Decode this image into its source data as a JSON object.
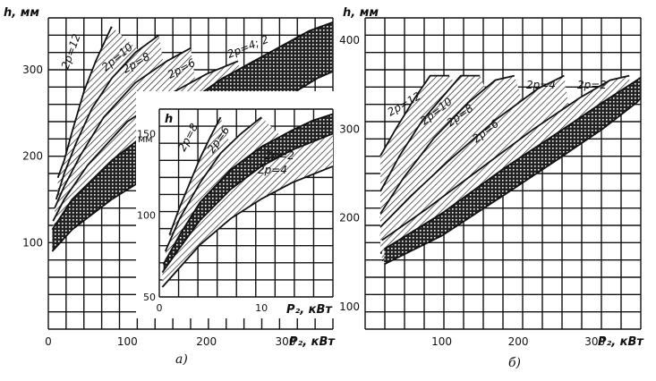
{
  "chart_data": [
    {
      "id": "a",
      "type": "area",
      "panel_label": "а)",
      "ylabel": "h, мм",
      "xlabel": "P₂, кВт",
      "xlim": [
        0,
        360
      ],
      "ylim": [
        0,
        360
      ],
      "x_ticks": [
        0,
        100,
        200,
        300
      ],
      "y_ticks": [
        100,
        200,
        300
      ],
      "grid": true,
      "series": [
        {
          "name": "2p=12",
          "fill": "hatch",
          "upper": [
            [
              12,
              175
            ],
            [
              20,
              195
            ],
            [
              30,
              228
            ],
            [
              45,
              275
            ],
            [
              60,
              310
            ],
            [
              80,
              350
            ]
          ],
          "lower": [
            [
              12,
              130
            ],
            [
              20,
              155
            ],
            [
              30,
              185
            ],
            [
              45,
              225
            ],
            [
              60,
              252
            ],
            [
              80,
              280
            ],
            [
              100,
              298
            ],
            [
              130,
              310
            ]
          ]
        },
        {
          "name": "2p=10",
          "fill": "hatch",
          "upper": [
            [
              10,
              150
            ],
            [
              20,
              180
            ],
            [
              35,
              215
            ],
            [
              55,
              255
            ],
            [
              80,
              290
            ],
            [
              110,
              320
            ],
            [
              140,
              340
            ]
          ],
          "lower": [
            [
              10,
              120
            ],
            [
              20,
              140
            ],
            [
              35,
              170
            ],
            [
              55,
              205
            ],
            [
              80,
              235
            ],
            [
              110,
              258
            ],
            [
              150,
              280
            ]
          ]
        },
        {
          "name": "2p=8",
          "fill": "hatch",
          "upper": [
            [
              8,
              140
            ],
            [
              20,
              165
            ],
            [
              40,
              200
            ],
            [
              70,
              245
            ],
            [
              110,
              285
            ],
            [
              150,
              310
            ],
            [
              180,
              325
            ]
          ],
          "lower": [
            [
              8,
              110
            ],
            [
              20,
              130
            ],
            [
              40,
              160
            ],
            [
              70,
              195
            ],
            [
              110,
              222
            ],
            [
              150,
              245
            ],
            [
              190,
              262
            ]
          ]
        },
        {
          "name": "2p=6",
          "fill": "hatch",
          "upper": [
            [
              6,
              125
            ],
            [
              20,
              150
            ],
            [
              50,
              190
            ],
            [
              100,
              240
            ],
            [
              150,
              270
            ],
            [
              200,
              295
            ],
            [
              240,
              310
            ]
          ],
          "lower": [
            [
              6,
              100
            ],
            [
              20,
              120
            ],
            [
              50,
              150
            ],
            [
              100,
              185
            ],
            [
              150,
              210
            ],
            [
              200,
              232
            ],
            [
              250,
              250
            ]
          ]
        },
        {
          "name": "2p=4; 2",
          "fill": "cross",
          "upper": [
            [
              5,
              115
            ],
            [
              30,
              150
            ],
            [
              80,
              195
            ],
            [
              150,
              245
            ],
            [
              220,
              290
            ],
            [
              280,
              320
            ],
            [
              330,
              345
            ],
            [
              360,
              355
            ]
          ],
          "lower": [
            [
              5,
              90
            ],
            [
              30,
              115
            ],
            [
              80,
              150
            ],
            [
              150,
              190
            ],
            [
              220,
              225
            ],
            [
              290,
              262
            ],
            [
              340,
              290
            ],
            [
              360,
              298
            ]
          ]
        }
      ]
    },
    {
      "id": "a-inset",
      "type": "area",
      "ylabel": "h",
      "yunit": "мм",
      "xlabel": "P₂, кВт",
      "xlim": [
        0,
        17
      ],
      "ylim": [
        50,
        165
      ],
      "x_ticks": [
        0,
        10
      ],
      "y_ticks": [
        50,
        100,
        150
      ],
      "grid": true,
      "series": [
        {
          "name": "2p=8",
          "fill": "hatch",
          "upper": [
            [
              1,
              88
            ],
            [
              2,
              105
            ],
            [
              3,
              120
            ],
            [
              4,
              135
            ],
            [
              5,
              148
            ],
            [
              6,
              160
            ]
          ],
          "lower": [
            [
              1,
              78
            ],
            [
              2,
              92
            ],
            [
              3,
              105
            ],
            [
              4,
              116
            ],
            [
              5,
              126
            ],
            [
              6,
              135
            ],
            [
              7,
              142
            ]
          ]
        },
        {
          "name": "2p=6",
          "fill": "hatch",
          "upper": [
            [
              0.6,
              78
            ],
            [
              2,
              98
            ],
            [
              4,
              120
            ],
            [
              6,
              138
            ],
            [
              8,
              150
            ],
            [
              10,
              160
            ]
          ],
          "lower": [
            [
              0.6,
              70
            ],
            [
              2,
              85
            ],
            [
              4,
              103
            ],
            [
              6,
              118
            ],
            [
              8,
              130
            ],
            [
              10,
              140
            ],
            [
              12,
              148
            ]
          ]
        },
        {
          "name": "2p=2",
          "fill": "cross",
          "upper": [
            [
              0.4,
              70
            ],
            [
              2,
              88
            ],
            [
              4,
              108
            ],
            [
              7,
              128
            ],
            [
              10,
              142
            ],
            [
              13,
              152
            ],
            [
              15,
              158
            ],
            [
              17,
              162
            ]
          ],
          "lower": [
            [
              0.4,
              62
            ],
            [
              2,
              76
            ],
            [
              4,
              92
            ],
            [
              7,
              110
            ],
            [
              10,
              124
            ],
            [
              13,
              135
            ],
            [
              16,
              142
            ],
            [
              17,
              145
            ]
          ]
        },
        {
          "name": "2p=4",
          "fill": "hatch",
          "upper": [
            [
              0.3,
              65
            ],
            [
              2,
              80
            ],
            [
              4,
              97
            ],
            [
              7,
              116
            ],
            [
              10,
              130
            ],
            [
              13,
              140
            ],
            [
              17,
              150
            ]
          ],
          "lower": [
            [
              0.3,
              56
            ],
            [
              2,
              68
            ],
            [
              4,
              82
            ],
            [
              7,
              98
            ],
            [
              10,
              110
            ],
            [
              13,
              120
            ],
            [
              17,
              130
            ]
          ]
        }
      ]
    },
    {
      "id": "b",
      "type": "area",
      "panel_label": "б)",
      "ylabel": "h, мм",
      "xlabel": "P₂, кВт",
      "xlim": [
        0,
        360
      ],
      "ylim": [
        75,
        425
      ],
      "x_ticks": [
        100,
        200,
        300
      ],
      "y_ticks": [
        100,
        200,
        300,
        400
      ],
      "grid": true,
      "series": [
        {
          "name": "2p=12",
          "fill": "hatch",
          "upper": [
            [
              20,
              270
            ],
            [
              40,
              300
            ],
            [
              65,
              335
            ],
            [
              85,
              360
            ],
            [
              110,
              360
            ]
          ],
          "lower": [
            [
              20,
              200
            ],
            [
              40,
              235
            ],
            [
              65,
              270
            ],
            [
              85,
              290
            ],
            [
              110,
              310
            ],
            [
              140,
              325
            ]
          ]
        },
        {
          "name": "2p=10",
          "fill": "hatch",
          "upper": [
            [
              20,
              230
            ],
            [
              45,
              270
            ],
            [
              75,
              310
            ],
            [
              105,
              340
            ],
            [
              125,
              360
            ],
            [
              150,
              360
            ]
          ],
          "lower": [
            [
              20,
              180
            ],
            [
              45,
              215
            ],
            [
              75,
              250
            ],
            [
              105,
              280
            ],
            [
              135,
              300
            ],
            [
              170,
              318
            ]
          ]
        },
        {
          "name": "2p=8",
          "fill": "hatch",
          "upper": [
            [
              20,
              205
            ],
            [
              50,
              245
            ],
            [
              90,
              290
            ],
            [
              135,
              330
            ],
            [
              170,
              355
            ],
            [
              195,
              360
            ]
          ],
          "lower": [
            [
              20,
              170
            ],
            [
              50,
              195
            ],
            [
              90,
              230
            ],
            [
              135,
              262
            ],
            [
              175,
              288
            ],
            [
              215,
              305
            ]
          ]
        },
        {
          "name": "2p=6",
          "fill": "hatch",
          "upper": [
            [
              20,
              190
            ],
            [
              60,
              225
            ],
            [
              110,
              265
            ],
            [
              170,
              310
            ],
            [
              225,
              345
            ],
            [
              260,
              360
            ]
          ],
          "lower": [
            [
              20,
              160
            ],
            [
              60,
              185
            ],
            [
              110,
              215
            ],
            [
              170,
              250
            ],
            [
              225,
              280
            ],
            [
              270,
              300
            ]
          ]
        },
        {
          "name": "2p=4",
          "fill": "hatch",
          "upper": [
            [
              22,
              175
            ],
            [
              80,
              210
            ],
            [
              150,
              255
            ],
            [
              220,
              300
            ],
            [
              280,
              335
            ],
            [
              320,
              355
            ],
            [
              345,
              360
            ]
          ],
          "lower": [
            [
              22,
              152
            ],
            [
              80,
              180
            ],
            [
              150,
              215
            ],
            [
              220,
              255
            ],
            [
              280,
              290
            ],
            [
              330,
              318
            ],
            [
              345,
              325
            ]
          ]
        },
        {
          "name": "2p=2",
          "fill": "cross",
          "upper": [
            [
              25,
              165
            ],
            [
              100,
              205
            ],
            [
              180,
              255
            ],
            [
              250,
              295
            ],
            [
              310,
              330
            ],
            [
              355,
              355
            ],
            [
              360,
              358
            ]
          ],
          "lower": [
            [
              25,
              148
            ],
            [
              100,
              180
            ],
            [
              180,
              225
            ],
            [
              250,
              265
            ],
            [
              310,
              300
            ],
            [
              355,
              330
            ],
            [
              360,
              335
            ]
          ]
        }
      ]
    }
  ]
}
